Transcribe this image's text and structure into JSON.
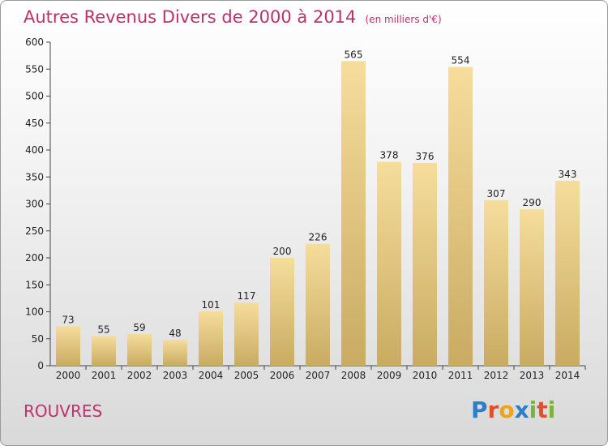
{
  "header": {
    "title": "Autres Revenus Divers de 2000 à 2014",
    "unit": "(en milliers d'€)"
  },
  "footer": {
    "commune": "ROUVRES",
    "logo": "Proxiti"
  },
  "colors": {
    "title": "#c0306a",
    "bar_top": "#f6dd9c",
    "bar_bottom": "#c9ab62",
    "axis": "#444444"
  },
  "chart_data": {
    "type": "bar",
    "title": "Autres Revenus Divers de 2000 à 2014",
    "subtitle": "(en milliers d'€)",
    "categories": [
      "2000",
      "2001",
      "2002",
      "2003",
      "2004",
      "2005",
      "2006",
      "2007",
      "2008",
      "2009",
      "2010",
      "2011",
      "2012",
      "2013",
      "2014"
    ],
    "values": [
      73,
      55,
      59,
      48,
      101,
      117,
      200,
      226,
      565,
      378,
      376,
      554,
      307,
      290,
      343
    ],
    "ylim": [
      0,
      600
    ],
    "yticks": [
      0,
      50,
      100,
      150,
      200,
      250,
      300,
      350,
      400,
      450,
      500,
      550,
      600
    ],
    "grid": false,
    "data_labels": true
  }
}
